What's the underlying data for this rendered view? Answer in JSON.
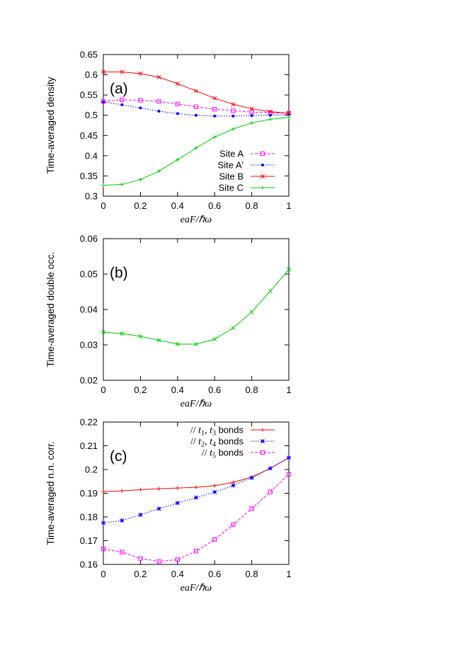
{
  "chart_data": [
    {
      "type": "line",
      "panel": "(a)",
      "ylabel": "Time-averaged density",
      "xlabel": "eaF/ℏω",
      "xlim": [
        0,
        1
      ],
      "ylim": [
        0.3,
        0.65
      ],
      "xticks": [
        "0",
        "0.2",
        "0.4",
        "0.6",
        "0.8",
        "1"
      ],
      "yticks": [
        "0.3",
        "0.35",
        "0.4",
        "0.45",
        "0.5",
        "0.55",
        "0.6",
        "0.65"
      ],
      "legend_position": "bottom-right",
      "x": [
        0,
        0.1,
        0.2,
        0.3,
        0.4,
        0.5,
        0.6,
        0.7,
        0.8,
        0.9,
        1.0
      ],
      "series": [
        {
          "name": "Site A",
          "color": "#ff00ff",
          "marker": "square",
          "dash": "4,2",
          "values": [
            0.534,
            0.538,
            0.537,
            0.534,
            0.528,
            0.521,
            0.515,
            0.511,
            0.508,
            0.506,
            0.505
          ]
        },
        {
          "name": "Site A'",
          "color": "#0000ff",
          "marker": "dot",
          "dash": "1.5,2",
          "values": [
            0.533,
            0.526,
            0.518,
            0.51,
            0.504,
            0.5,
            0.498,
            0.498,
            0.499,
            0.5,
            0.502
          ]
        },
        {
          "name": "Site B",
          "color": "#ff0000",
          "marker": "x",
          "dash": "",
          "values": [
            0.607,
            0.607,
            0.603,
            0.594,
            0.578,
            0.56,
            0.542,
            0.527,
            0.516,
            0.509,
            0.505
          ]
        },
        {
          "name": "Site C",
          "color": "#00cc00",
          "marker": "plus",
          "dash": "",
          "values": [
            0.327,
            0.329,
            0.341,
            0.362,
            0.39,
            0.419,
            0.446,
            0.466,
            0.481,
            0.49,
            0.495
          ]
        }
      ]
    },
    {
      "type": "line",
      "panel": "(b)",
      "ylabel": "Time-averaged double occ.",
      "xlabel": "eaF/ℏω",
      "xlim": [
        0,
        1
      ],
      "ylim": [
        0.02,
        0.06
      ],
      "xticks": [
        "0",
        "0.2",
        "0.4",
        "0.6",
        "0.8",
        "1"
      ],
      "yticks": [
        "0.02",
        "0.03",
        "0.04",
        "0.05",
        "0.06"
      ],
      "x": [
        0,
        0.1,
        0.2,
        0.3,
        0.4,
        0.5,
        0.6,
        0.7,
        0.8,
        0.9,
        1.0
      ],
      "series": [
        {
          "name": "double occupancy",
          "color": "#00cc00",
          "marker": "x",
          "dash": "",
          "values": [
            0.0336,
            0.0332,
            0.0324,
            0.0313,
            0.0302,
            0.0302,
            0.0316,
            0.0348,
            0.0393,
            0.0452,
            0.0513
          ]
        }
      ]
    },
    {
      "type": "line",
      "panel": "(c)",
      "ylabel": "Time-averaged n.n. corr.",
      "xlabel": "eaF/ℏω",
      "xlim": [
        0,
        1
      ],
      "ylim": [
        0.16,
        0.22
      ],
      "xticks": [
        "0",
        "0.2",
        "0.4",
        "0.6",
        "0.8",
        "1"
      ],
      "yticks": [
        "0.16",
        "0.17",
        "0.18",
        "0.19",
        "0.2",
        "0.21",
        "0.22"
      ],
      "legend_position": "top-right",
      "x": [
        0,
        0.1,
        0.2,
        0.3,
        0.4,
        0.5,
        0.6,
        0.7,
        0.8,
        0.9,
        1.0
      ],
      "series": [
        {
          "name": "// t1, t3 bonds",
          "label_parts": [
            "// ",
            "t",
            "1",
            ", ",
            "t",
            "3",
            " bonds"
          ],
          "color": "#ff0000",
          "marker": "plus",
          "dash": "",
          "values": [
            0.1907,
            0.191,
            0.1915,
            0.1919,
            0.1922,
            0.1925,
            0.1932,
            0.1946,
            0.1968,
            0.2005,
            0.205
          ]
        },
        {
          "name": "// t2, t4 bonds",
          "label_parts": [
            "// ",
            "t",
            "2",
            ", ",
            "t",
            "4",
            " bonds"
          ],
          "color": "#0000ff",
          "marker": "star",
          "dash": "1.5,2",
          "values": [
            0.1775,
            0.1785,
            0.1809,
            0.1835,
            0.1859,
            0.1882,
            0.1905,
            0.1933,
            0.1965,
            0.2005,
            0.205
          ]
        },
        {
          "name": "// t5 bonds",
          "label_parts": [
            "// ",
            "t",
            "5",
            "",
            "",
            "",
            " bonds"
          ],
          "color": "#ff00ff",
          "marker": "square",
          "dash": "4,2",
          "values": [
            0.1665,
            0.1652,
            0.1625,
            0.1613,
            0.162,
            0.1656,
            0.1705,
            0.1768,
            0.1835,
            0.1906,
            0.198
          ]
        }
      ]
    }
  ]
}
